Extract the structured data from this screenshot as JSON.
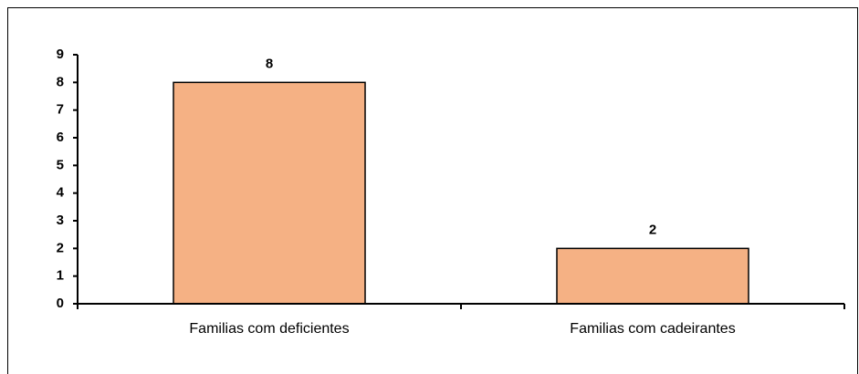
{
  "chart_data": {
    "type": "bar",
    "categories": [
      "Familias com deficientes",
      "Familias com cadeirantes"
    ],
    "values": [
      8,
      2
    ],
    "color": "#f5b184",
    "ylim": [
      0,
      9
    ],
    "yticks": [
      0,
      1,
      2,
      3,
      4,
      5,
      6,
      7,
      8,
      9
    ]
  }
}
